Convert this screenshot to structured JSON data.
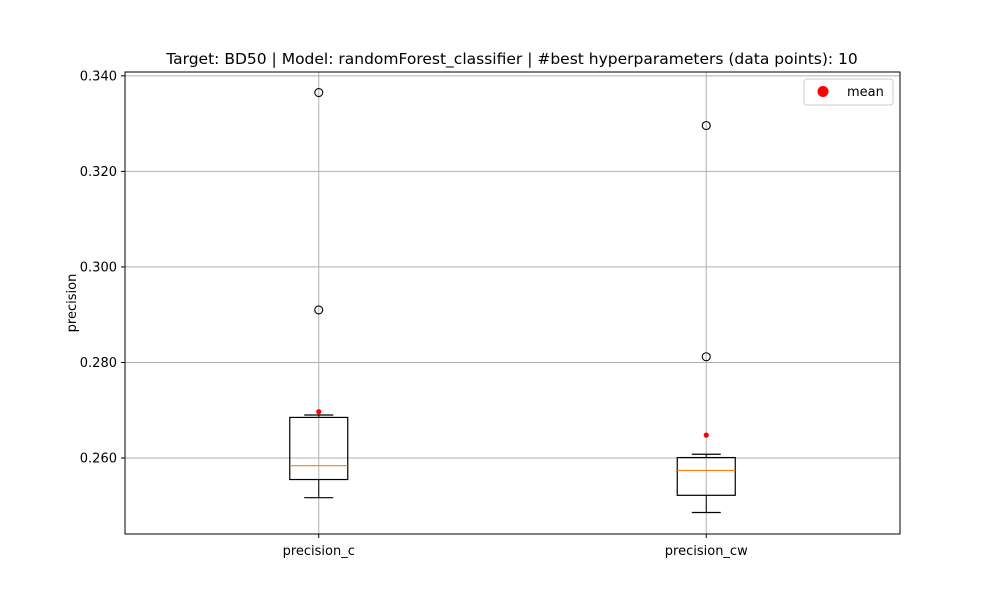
{
  "chart_data": {
    "type": "box",
    "title": "Target: BD50 | Model: randomForest_classifier | #best hyperparameters (data points): 10",
    "xlabel": "",
    "ylabel": "precision",
    "ylim": [
      0.2441,
      0.3408
    ],
    "yticks": [
      0.26,
      0.28,
      0.3,
      0.32,
      0.34
    ],
    "ytick_labels": [
      "0.260",
      "0.280",
      "0.300",
      "0.320",
      "0.340"
    ],
    "grid": true,
    "legend": {
      "position": "top-right",
      "entries": [
        {
          "label": "mean",
          "color": "#ff0000",
          "marker": "circle"
        }
      ]
    },
    "categories": [
      "precision_c",
      "precision_cw"
    ],
    "boxes": [
      {
        "name": "precision_c",
        "whisker_low": 0.2517,
        "q1": 0.2555,
        "median": 0.2584,
        "q3": 0.2685,
        "whisker_high": 0.269,
        "mean": 0.2697,
        "outliers": [
          0.291,
          0.3365
        ]
      },
      {
        "name": "precision_cw",
        "whisker_low": 0.2486,
        "q1": 0.2522,
        "median": 0.2574,
        "q3": 0.2601,
        "whisker_high": 0.2608,
        "mean": 0.2648,
        "outliers": [
          0.2812,
          0.3296
        ]
      }
    ],
    "colors": {
      "box": "#000000",
      "median": "#ff7f0e",
      "mean": "#ff0000",
      "grid": "#b0b0b0"
    }
  }
}
